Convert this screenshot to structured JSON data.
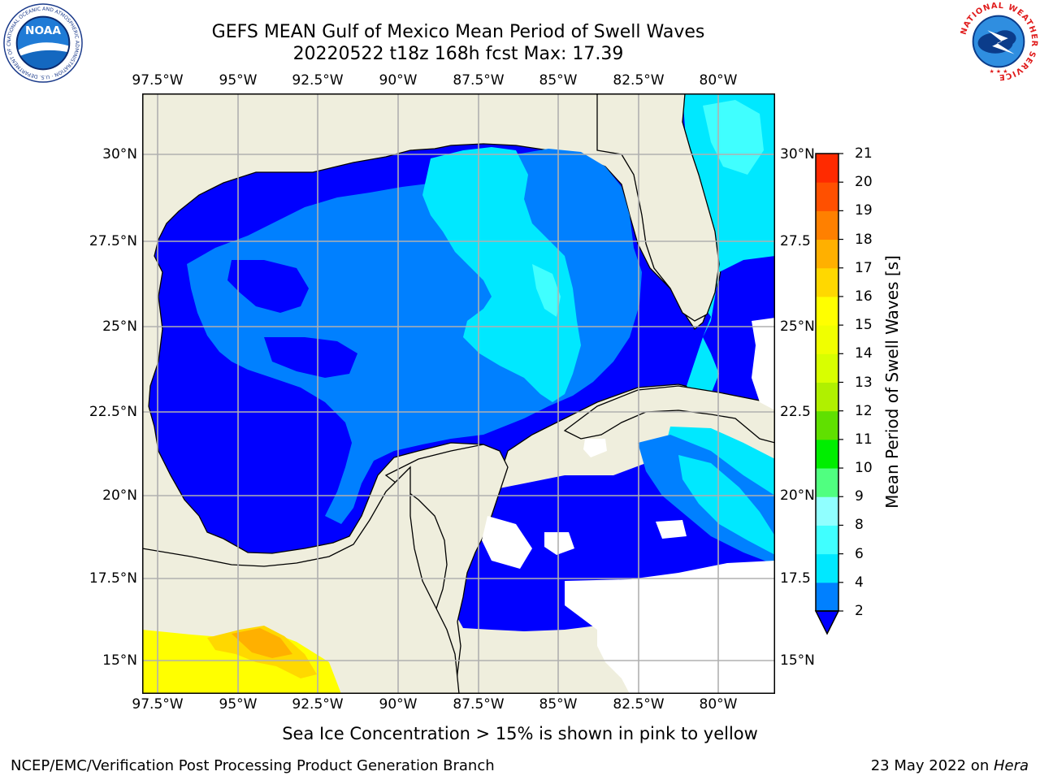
{
  "header": {
    "title_line1": "GEFS MEAN Gulf of Mexico Mean Period of Swell Waves",
    "title_line2": "20220522 t18z 168h fcst   Max: 17.39"
  },
  "logos": {
    "noaa": "NOAA",
    "noaa_ring": "NATIONAL OCEANIC AND ATMOSPHERIC ADMINISTRATION · U.S. DEPARTMENT OF COMMERCE",
    "nws_ring": "NATIONAL WEATHER SERVICE"
  },
  "map": {
    "lon_labels": [
      "97.5°W",
      "95°W",
      "92.5°W",
      "90°W",
      "87.5°W",
      "85°W",
      "82.5°W",
      "80°W"
    ],
    "lat_labels_left": [
      "30°N",
      "27.5°N",
      "25°N",
      "22.5°N",
      "20°N",
      "17.5°N",
      "15°N"
    ],
    "lat_labels_right": [
      "30°N",
      "27.5",
      "25°N",
      "22.5",
      "20°N",
      "17.5",
      "15°N"
    ],
    "colors": {
      "land": "#efeedd",
      "grid": "#b0b0b0"
    }
  },
  "colorbar": {
    "label": "Mean Period of Swell Waves [s]",
    "ticks": [
      "2",
      "4",
      "6",
      "8",
      "9",
      "10",
      "11",
      "12",
      "13",
      "14",
      "15",
      "16",
      "17",
      "18",
      "19",
      "20",
      "21"
    ],
    "colors": [
      "#0000ff",
      "#0080ff",
      "#00e8ff",
      "#40ffff",
      "#90ffff",
      "#50ff80",
      "#00ee00",
      "#60e000",
      "#b0f000",
      "#d8ff00",
      "#f0ff00",
      "#ffff00",
      "#ffd800",
      "#ffb000",
      "#ff8000",
      "#ff5000",
      "#ff2a00",
      "#ff0000"
    ]
  },
  "footer": {
    "note": "Sea Ice Concentration > 15% is shown in pink to yellow",
    "left": "NCEP/EMC/Verification Post Processing Product Generation Branch",
    "right_date": "23 May 2022 on ",
    "right_machine": "Hera"
  }
}
